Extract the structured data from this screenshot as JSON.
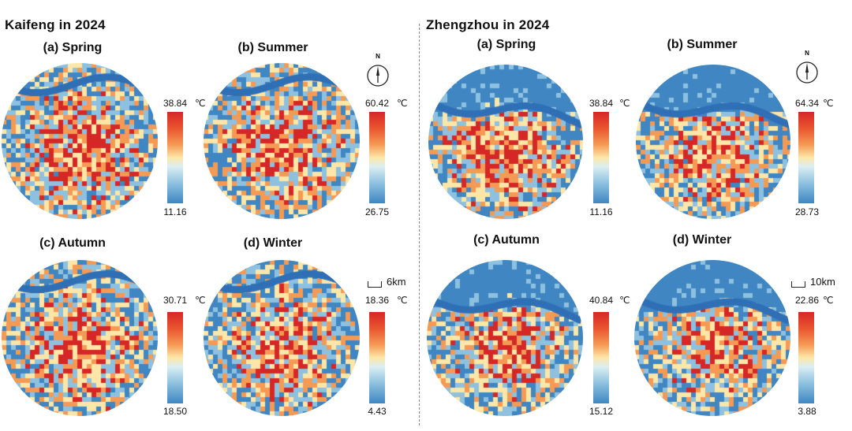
{
  "colors": {
    "hot": "#d62727",
    "warm": "#f59a55",
    "mid": "#fde7a8",
    "cool": "#8ec1df",
    "cold": "#3f86c2",
    "river": "#2f6fb6"
  },
  "unit": "℃",
  "cities": [
    {
      "title": "Kaifeng in 2024",
      "panels": [
        {
          "label": "(a) Spring",
          "max": "38.84",
          "min": "11.16",
          "heat": 0.62
        },
        {
          "label": "(b) Summer",
          "max": "60.42",
          "min": "26.75",
          "heat": 0.55
        },
        {
          "label": "(c) Autumn",
          "max": "30.71",
          "min": "18.50",
          "heat": 0.58
        },
        {
          "label": "(d) Winter",
          "max": "18.36",
          "min": "4.43",
          "heat": 0.55
        }
      ],
      "north_label": "N",
      "scale_label": "6km"
    },
    {
      "title": "Zhengzhou in 2024",
      "panels": [
        {
          "label": "(a) Spring",
          "max": "38.84",
          "min": "11.16",
          "heat": 0.6
        },
        {
          "label": "(b) Summer",
          "max": "64.34",
          "min": "28.73",
          "heat": 0.5
        },
        {
          "label": "(c) Autumn",
          "max": "40.84",
          "min": "15.12",
          "heat": 0.55
        },
        {
          "label": "(d) Winter",
          "max": "22.86",
          "min": "3.88",
          "heat": 0.5
        }
      ],
      "north_label": "N",
      "scale_label": "10km"
    }
  ]
}
